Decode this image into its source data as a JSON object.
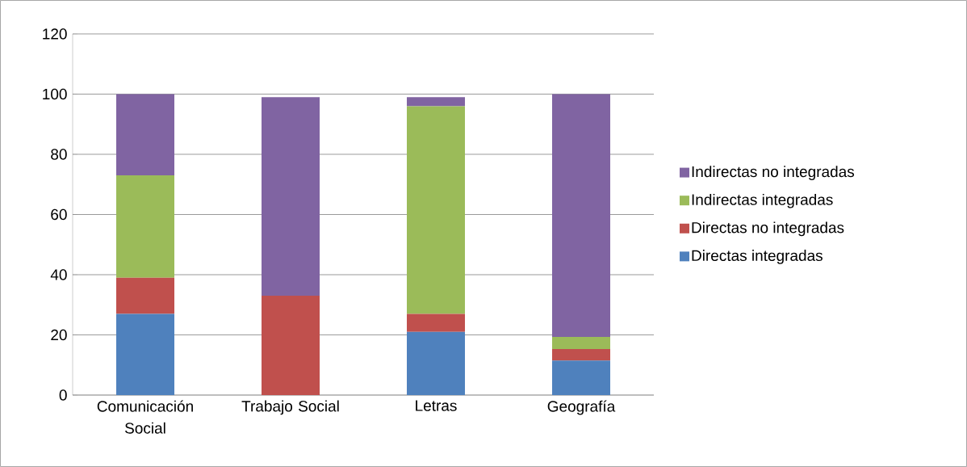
{
  "chart_data": {
    "type": "bar",
    "stacked": true,
    "categories": [
      "Comunicación Social",
      "Trabajo Social",
      "Letras",
      "Geografía"
    ],
    "series": [
      {
        "name": "Directas integradas",
        "color": "#4f81bd",
        "values": [
          27,
          0,
          21,
          11.5
        ]
      },
      {
        "name": "Directas no integradas",
        "color": "#c0504d",
        "values": [
          12,
          33,
          6,
          3.8
        ]
      },
      {
        "name": "Indirectas integradas",
        "color": "#9bbb59",
        "values": [
          34,
          0,
          69,
          4
        ]
      },
      {
        "name": "Indirectas  no integradas",
        "color": "#8064a2",
        "values": [
          27,
          66,
          3,
          80.7
        ]
      }
    ],
    "ylim": [
      0,
      120
    ],
    "yticks": [
      0,
      20,
      40,
      60,
      80,
      100,
      120
    ],
    "grid": "y",
    "legend": "right"
  }
}
